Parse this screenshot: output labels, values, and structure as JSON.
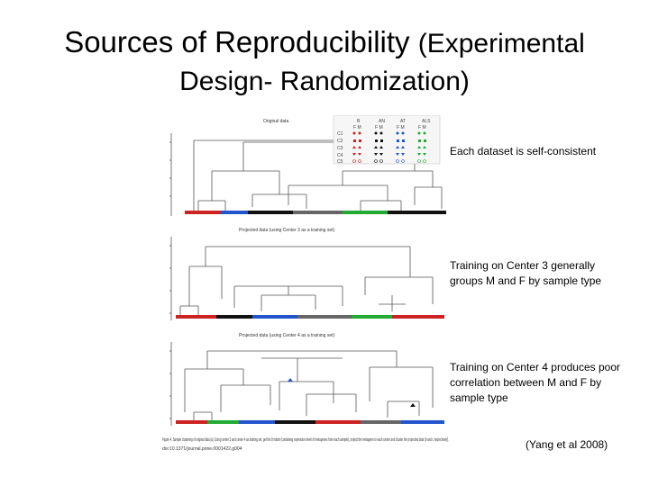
{
  "slide": {
    "title_main": "Sources of Reproducibility",
    "title_paren": "(Experimental",
    "title_line2": "Design- Randomization)"
  },
  "annotations": {
    "dataset_consistent": "Each dataset is self-consistent",
    "training_center3": "Training on Center 3 generally groups M and F by sample type",
    "training_center4": "Training on Center 4 produces poor correlation between M and F by sample type"
  },
  "citation": "(Yang et al 2008)",
  "figure": {
    "panel1_title": "Original data",
    "panel2_title": "Projected data (using Center 3 as a training set)",
    "panel3_title": "Projected data (using Center 4 as a training set)",
    "legend_headers": [
      "B",
      "AN",
      "AT",
      "ALS"
    ],
    "legend_subheaders": [
      "F M",
      "F M",
      "F M",
      "F M"
    ],
    "legend_rows": [
      "C1",
      "C2",
      "C3",
      "C4",
      "C5"
    ],
    "caption": "Figure 4. Sample clustering of original data (a). Using center 3 and center 4 as training set, get the 8 matrix (containing expression level of metagenes from each sample), project the metagene to each center and cluster the projected data (b and c respectively).",
    "caption_doi": "doi:10.1371/journal.pone.0001422.g004",
    "colors": {
      "red": "#cc2222",
      "blue": "#2255cc",
      "green": "#22aa33",
      "black": "#111111",
      "grey": "#666666"
    }
  }
}
